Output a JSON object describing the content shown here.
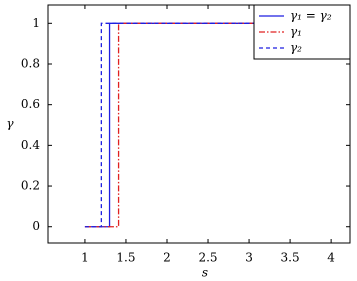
{
  "chart_data": {
    "type": "line",
    "x_label": "s",
    "y_label": "γ",
    "xlim": [
      0.55,
      4.23
    ],
    "ylim": [
      -0.08,
      1.09
    ],
    "xticks": [
      1,
      1.5,
      2,
      2.5,
      3,
      3.5,
      4
    ],
    "yticks": [
      0,
      0.2,
      0.4,
      0.6,
      0.8,
      1
    ],
    "legend": "upper right",
    "series": [
      {
        "name": "γ₁ = γ₂",
        "color": "#1f1fe0",
        "dash": "solid",
        "x": [
          1,
          1.3,
          1.3,
          4.2
        ],
        "values": [
          0,
          0,
          1,
          1
        ]
      },
      {
        "name": "γ₁",
        "color": "#e02020",
        "dash": "dashdot",
        "x": [
          1,
          1.41,
          1.41,
          4.2
        ],
        "values": [
          0,
          0,
          1,
          1
        ]
      },
      {
        "name": "γ₂",
        "color": "#1f1fe0",
        "dash": "dashed",
        "x": [
          1,
          1.2,
          1.2,
          4.2
        ],
        "values": [
          0,
          0,
          1,
          1
        ]
      }
    ]
  }
}
